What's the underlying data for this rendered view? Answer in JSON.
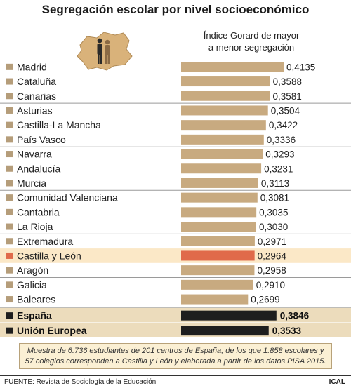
{
  "title": "Segregación escolar por nivel socioeconómico",
  "subtitle_line1": "Índice Gorard de mayor",
  "subtitle_line2": "a menor segregación",
  "note": "Muestra de 6.736 estudiantes de 201 centros de España, de los que 1.858 escolares y 57 colegios corresponden a Castilla y León y elaborada a partir de los datos PISA 2015.",
  "source": "FUENTE: Revista de Sociología de la Educación",
  "credit": "ICAL",
  "colors": {
    "bar": "#c8aa80",
    "highlight_bar": "#e06a4a",
    "highlight_row": "#fbe8c7",
    "total_bar": "#1e1e1e",
    "total_row": "#ecdcbc",
    "marker": "#b59d7a"
  },
  "chart_data": {
    "type": "bar",
    "orientation": "horizontal",
    "categories": [
      "Madrid",
      "Cataluña",
      "Canarias",
      "Asturias",
      "Castilla-La Mancha",
      "País Vasco",
      "Navarra",
      "Andalucía",
      "Murcia",
      "Comunidad Valenciana",
      "Cantabria",
      "La Rioja",
      "Extremadura",
      "Castilla y León",
      "Aragón",
      "Galicia",
      "Baleares"
    ],
    "values": [
      0.4135,
      0.3588,
      0.3581,
      0.3504,
      0.3422,
      0.3336,
      0.3293,
      0.3231,
      0.3113,
      0.3081,
      0.3035,
      0.303,
      0.2971,
      0.2964,
      0.2958,
      0.291,
      0.2699
    ],
    "value_labels": [
      "0,4135",
      "0,3588",
      "0,3581",
      "0,3504",
      "0,3422",
      "0,3336",
      "0,3293",
      "0,3231",
      "0,3113",
      "0,3081",
      "0,3035",
      "0,3030",
      "0,2971",
      "0,2964",
      "0,2958",
      "0,2910",
      "0,2699"
    ],
    "highlight": "Castilla y León",
    "totals": [
      {
        "category": "España",
        "value": 0.3846,
        "value_label": "0,3846"
      },
      {
        "category": "Unión Europea",
        "value": 0.3533,
        "value_label": "0,3533"
      }
    ],
    "xlim": [
      0,
      0.4135
    ],
    "grid": false,
    "legend": "none"
  }
}
